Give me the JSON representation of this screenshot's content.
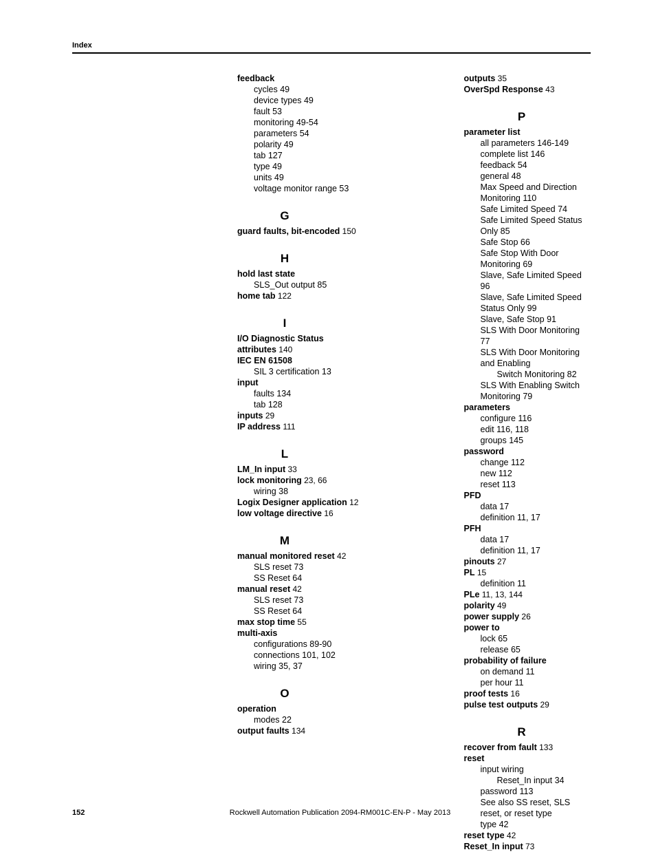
{
  "header": {
    "label": "Index"
  },
  "footer": {
    "page": "152",
    "publication": "Rockwell Automation Publication 2094-RM001C-EN-P - May 2013"
  },
  "left": {
    "feedback": {
      "term": "feedback",
      "subs": [
        "cycles 49",
        "device types 49",
        "fault 53",
        "monitoring 49-54",
        "parameters 54",
        "polarity 49",
        "tab 127",
        "type 49",
        "units 49",
        "voltage monitor range 53"
      ]
    },
    "G": "G",
    "guard_faults": {
      "term": "guard faults, bit-encoded",
      "pg": " 150"
    },
    "H": "H",
    "hold_last_state": {
      "term": "hold last state",
      "subs": [
        "SLS_Out output 85"
      ]
    },
    "home_tab": {
      "term": "home tab",
      "pg": " 122"
    },
    "I": "I",
    "io_diag": {
      "term": "I/O Diagnostic Status attributes",
      "pg": " 140"
    },
    "iec": {
      "term": "IEC EN 61508",
      "subs": [
        "SIL 3 certification 13"
      ]
    },
    "input": {
      "term": "input",
      "subs": [
        "faults 134",
        "tab 128"
      ]
    },
    "inputs": {
      "term": "inputs",
      "pg": " 29"
    },
    "ip": {
      "term": "IP address",
      "pg": " 111"
    },
    "L": "L",
    "lm_in": {
      "term": "LM_In input",
      "pg": " 33"
    },
    "lock_mon": {
      "term": "lock monitoring",
      "pg": " 23, 66",
      "subs": [
        "wiring 38"
      ]
    },
    "logix": {
      "term": "Logix Designer application",
      "pg": " 12"
    },
    "lvd": {
      "term": "low voltage directive",
      "pg": " 16"
    },
    "M": "M",
    "mmr": {
      "term": "manual monitored reset",
      "pg": " 42",
      "subs": [
        "SLS reset 73",
        "SS Reset 64"
      ]
    },
    "mr": {
      "term": "manual reset",
      "pg": " 42",
      "subs": [
        "SLS reset 73",
        "SS Reset 64"
      ]
    },
    "mst": {
      "term": "max stop time",
      "pg": " 55"
    },
    "ma": {
      "term": "multi-axis",
      "subs": [
        "configurations 89-90",
        "connections 101, 102",
        "wiring 35, 37"
      ]
    },
    "O": "O",
    "op": {
      "term": "operation",
      "subs": [
        "modes 22"
      ]
    },
    "of": {
      "term": "output faults",
      "pg": " 134"
    }
  },
  "right": {
    "outputs": {
      "term": "outputs",
      "pg": " 35"
    },
    "overspd": {
      "term": "OverSpd Response",
      "pg": " 43"
    },
    "P": "P",
    "parameter_list": {
      "term": "parameter list",
      "subs": [
        "all parameters 146-149",
        "complete list 146",
        "feedback 54",
        "general 48",
        "Max Speed and Direction Monitoring 110",
        "Safe Limited Speed 74",
        "Safe Limited Speed Status Only 85",
        "Safe Stop 66",
        "Safe Stop With Door Monitoring 69",
        "Slave, Safe Limited Speed 96",
        "Slave, Safe Limited Speed Status Only 99",
        "Slave, Safe Stop 91",
        "SLS With Door Monitoring 77",
        "SLS With Door Monitoring and Enabling"
      ],
      "sub2": "Switch Monitoring 82",
      "subs_after": [
        "SLS With Enabling Switch Monitoring 79"
      ]
    },
    "parameters": {
      "term": "parameters",
      "subs": [
        "configure 116",
        "edit 116, 118",
        "groups 145"
      ]
    },
    "password": {
      "term": "password",
      "subs": [
        "change 112",
        "new 112",
        "reset 113"
      ]
    },
    "pfd": {
      "term": "PFD",
      "subs": [
        "data 17",
        "definition 11, 17"
      ]
    },
    "pfh": {
      "term": "PFH",
      "subs": [
        "data 17",
        "definition 11, 17"
      ]
    },
    "pinouts": {
      "term": "pinouts",
      "pg": " 27"
    },
    "pl": {
      "term": "PL",
      "pg": " 15",
      "subs": [
        "definition 11"
      ]
    },
    "ple": {
      "term": "PLe",
      "pg": " 11, 13, 144"
    },
    "polarity": {
      "term": "polarity",
      "pg": " 49"
    },
    "ps": {
      "term": "power supply",
      "pg": " 26"
    },
    "pt": {
      "term": "power to",
      "subs": [
        "lock 65",
        "release 65"
      ]
    },
    "pof": {
      "term": "probability of failure",
      "subs": [
        "on demand 11",
        "per hour 11"
      ]
    },
    "proof": {
      "term": "proof tests",
      "pg": " 16"
    },
    "pto": {
      "term": "pulse test outputs",
      "pg": " 29"
    },
    "R": "R",
    "rff": {
      "term": "recover from fault",
      "pg": " 133"
    },
    "reset": {
      "term": "reset",
      "subs_top": [
        "input wiring"
      ],
      "sub2": "Reset_In input 34",
      "subs_bottom": [
        "password 113",
        "See also SS reset, SLS reset, or reset type",
        "type 42"
      ]
    },
    "rt": {
      "term": "reset type",
      "pg": " 42"
    },
    "rii": {
      "term": "Reset_In input",
      "pg": " 73"
    }
  }
}
